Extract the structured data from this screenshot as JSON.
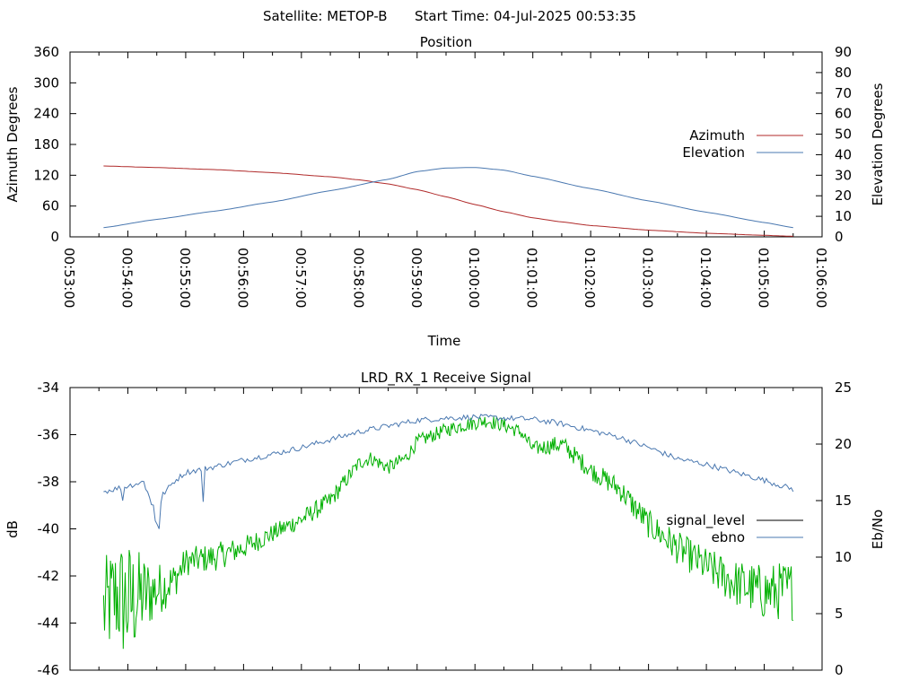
{
  "header": {
    "satellite": "Satellite: METOP-B",
    "start_time": "Start Time: 04-Jul-2025 00:53:35"
  },
  "chart_data": [
    {
      "type": "line",
      "title": "Position",
      "xlabel": "Time",
      "ylabel": "Azimuth Degrees",
      "y2label": "Elevation Degrees",
      "ylim": [
        0,
        360
      ],
      "y2lim": [
        0,
        90
      ],
      "yticks": [
        "0",
        "60",
        "120",
        "180",
        "240",
        "300",
        "360"
      ],
      "y2ticks": [
        "0",
        "10",
        "20",
        "30",
        "40",
        "50",
        "60",
        "70",
        "80",
        "90"
      ],
      "xticks": [
        "00:53:00",
        "00:54:00",
        "00:55:00",
        "00:56:00",
        "00:57:00",
        "00:58:00",
        "00:59:00",
        "01:00:00",
        "01:01:00",
        "01:02:00",
        "01:03:00",
        "01:04:00",
        "01:05:00",
        "01:06:00"
      ],
      "xlim_minutes": [
        0,
        13
      ],
      "legend_position": "right-middle",
      "grid": false,
      "series": [
        {
          "name": "Azimuth",
          "axis": "y1",
          "color": "#b02a2a",
          "x": [
            0.58,
            1.5,
            2.5,
            3.5,
            4.5,
            5.0,
            5.5,
            6.0,
            6.5,
            7.0,
            7.5,
            8.0,
            8.5,
            9.0,
            10.0,
            11.0,
            12.0,
            12.5
          ],
          "y": [
            138,
            135,
            131,
            125,
            117,
            111,
            103,
            92,
            78,
            63,
            49,
            37,
            29,
            22,
            13,
            7,
            3,
            1
          ]
        },
        {
          "name": "Elevation",
          "axis": "y2",
          "color": "#4a78b0",
          "x": [
            0.58,
            1.5,
            2.5,
            3.5,
            4.5,
            5.5,
            6.0,
            6.5,
            7.0,
            7.5,
            8.0,
            9.0,
            10.0,
            11.0,
            12.0,
            12.5
          ],
          "y": [
            4.5,
            8.5,
            12.5,
            17.0,
            22.5,
            28.0,
            31.8,
            33.5,
            33.8,
            32.5,
            29.5,
            23.5,
            17.5,
            12.0,
            7.0,
            4.5
          ]
        }
      ]
    },
    {
      "type": "line",
      "title": "LRD_RX_1 Receive Signal",
      "xlabel": "",
      "ylabel": "dB",
      "y2label": "Eb/No",
      "ylim": [
        -46,
        -34
      ],
      "y2lim": [
        0,
        25
      ],
      "yticks": [
        "-46",
        "-44",
        "-42",
        "-40",
        "-38",
        "-36",
        "-34"
      ],
      "y2ticks": [
        "0",
        "5",
        "10",
        "15",
        "20",
        "25"
      ],
      "xlim_minutes": [
        0,
        13
      ],
      "legend_position": "right-middle",
      "grid": false,
      "series": [
        {
          "name": "signal_level",
          "axis": "y1",
          "color": "#00b000",
          "legend_color": "#000000",
          "x": [
            0.58,
            0.8,
            1.0,
            1.2,
            1.5,
            1.8,
            2.0,
            2.5,
            3.0,
            3.5,
            4.0,
            4.5,
            5.0,
            5.2,
            5.5,
            5.8,
            6.0,
            6.5,
            6.8,
            7.0,
            7.2,
            7.5,
            7.8,
            8.0,
            8.5,
            9.0,
            9.5,
            10.0,
            10.5,
            11.0,
            11.5,
            12.0,
            12.5
          ],
          "y": [
            -43.5,
            -42.8,
            -43.2,
            -42.9,
            -42.6,
            -42.2,
            -41.4,
            -41.2,
            -40.8,
            -40.2,
            -39.6,
            -38.8,
            -37.2,
            -37.0,
            -37.4,
            -37.0,
            -36.3,
            -35.8,
            -35.6,
            -35.5,
            -35.4,
            -35.6,
            -35.9,
            -36.6,
            -36.4,
            -37.5,
            -38.3,
            -39.8,
            -40.8,
            -41.6,
            -42.3,
            -42.7,
            -42.6
          ],
          "noise_db": [
            2.2,
            2.4,
            2.8,
            2.0,
            1.2,
            0.8,
            0.6,
            0.6,
            0.5,
            0.4,
            0.4,
            0.4,
            0.3,
            0.3,
            0.3,
            0.3,
            0.3,
            0.3,
            0.3,
            0.3,
            0.3,
            0.3,
            0.3,
            0.3,
            0.4,
            0.4,
            0.5,
            0.6,
            0.7,
            0.8,
            1.0,
            1.2,
            1.3
          ]
        },
        {
          "name": "ebno",
          "axis": "y2",
          "color": "#4a78b0",
          "x": [
            0.58,
            1.0,
            1.3,
            1.5,
            1.6,
            1.8,
            2.0,
            2.5,
            3.0,
            3.5,
            4.0,
            4.5,
            5.0,
            5.5,
            6.0,
            6.5,
            7.0,
            7.5,
            8.0,
            8.5,
            9.0,
            9.5,
            10.0,
            10.5,
            11.0,
            11.5,
            12.0,
            12.5
          ],
          "y": [
            15.8,
            16.3,
            16.7,
            12.8,
            15.5,
            16.7,
            17.5,
            18.0,
            18.6,
            19.1,
            19.7,
            20.4,
            21.1,
            21.6,
            22.1,
            22.3,
            22.4,
            22.3,
            22.2,
            21.8,
            21.2,
            20.6,
            19.7,
            18.7,
            18.2,
            17.5,
            16.8,
            16.0
          ],
          "spikes": [
            {
              "x": 0.9,
              "y": 15.0
            },
            {
              "x": 1.3,
              "y": 16.0
            },
            {
              "x": 1.45,
              "y": 14.6
            },
            {
              "x": 1.55,
              "y": 12.5
            },
            {
              "x": 2.3,
              "y": 14.9
            }
          ]
        }
      ]
    }
  ]
}
